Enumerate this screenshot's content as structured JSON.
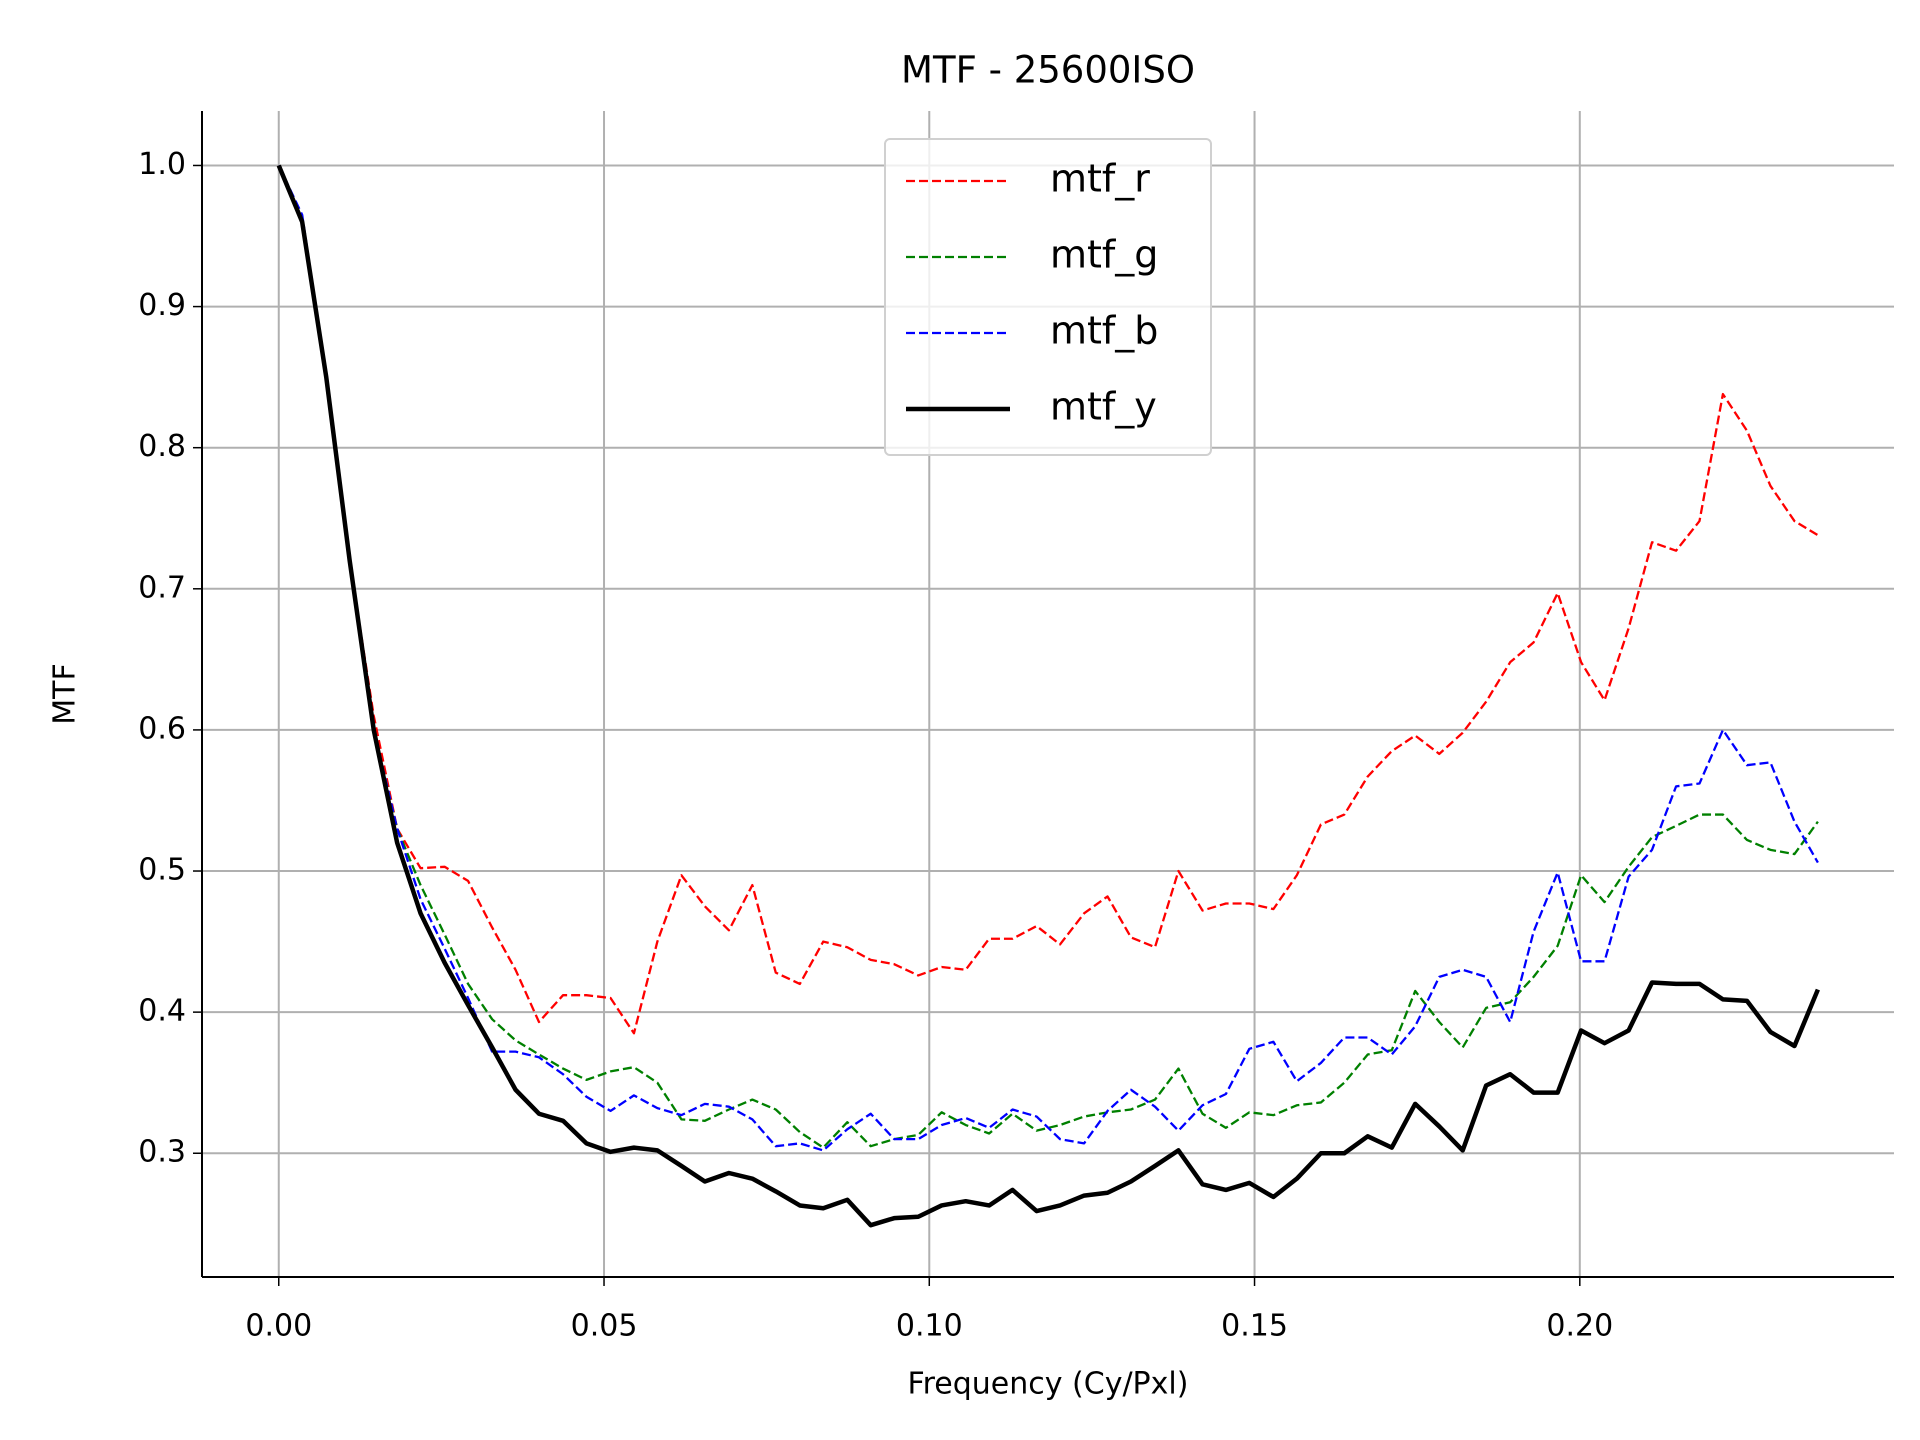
{
  "chart_data": {
    "type": "line",
    "title": "MTF - 25600ISO",
    "xlabel": "Frequency (Cy/Pxl)",
    "ylabel": "MTF",
    "x": [
      0,
      0.0036,
      0.0073,
      0.0109,
      0.0146,
      0.0182,
      0.0218,
      0.0255,
      0.0291,
      0.0328,
      0.0364,
      0.04,
      0.0437,
      0.0473,
      0.051,
      0.0546,
      0.0582,
      0.0619,
      0.0655,
      0.0692,
      0.0728,
      0.0764,
      0.0801,
      0.0837,
      0.0874,
      0.091,
      0.0946,
      0.0983,
      0.1019,
      0.1056,
      0.1092,
      0.1128,
      0.1165,
      0.1201,
      0.1238,
      0.1274,
      0.131,
      0.1347,
      0.1383,
      0.142,
      0.1456,
      0.1492,
      0.1529,
      0.1565,
      0.1602,
      0.1638,
      0.1674,
      0.1711,
      0.1747,
      0.1784,
      0.182,
      0.1856,
      0.1893,
      0.1929,
      0.1966,
      0.2002,
      0.2038,
      0.2075,
      0.2111,
      0.2148,
      0.2184,
      0.222,
      0.2257,
      0.2293,
      0.233,
      0.2366
    ],
    "series": [
      {
        "name": "mtf_r",
        "color": "#ff0000",
        "linestyle": "dashed",
        "values": [
          1.0,
          0.96,
          0.85,
          0.72,
          0.61,
          0.53,
          0.502,
          0.503,
          0.493,
          0.46,
          0.43,
          0.393,
          0.412,
          0.412,
          0.41,
          0.385,
          0.45,
          0.497,
          0.475,
          0.458,
          0.49,
          0.428,
          0.42,
          0.45,
          0.446,
          0.437,
          0.434,
          0.426,
          0.432,
          0.43,
          0.452,
          0.452,
          0.461,
          0.448,
          0.47,
          0.482,
          0.453,
          0.446,
          0.5,
          0.472,
          0.477,
          0.477,
          0.473,
          0.497,
          0.533,
          0.54,
          0.567,
          0.585,
          0.596,
          0.583,
          0.598,
          0.62,
          0.648,
          0.662,
          0.697,
          0.648,
          0.621,
          0.672,
          0.733,
          0.727,
          0.748,
          0.838,
          0.812,
          0.773,
          0.748,
          0.738
        ]
      },
      {
        "name": "mtf_g",
        "color": "#008000",
        "linestyle": "dashed",
        "values": [
          1.0,
          0.96,
          0.85,
          0.72,
          0.6,
          0.53,
          0.49,
          0.455,
          0.42,
          0.395,
          0.38,
          0.37,
          0.36,
          0.352,
          0.358,
          0.361,
          0.35,
          0.324,
          0.323,
          0.331,
          0.338,
          0.331,
          0.315,
          0.304,
          0.322,
          0.305,
          0.31,
          0.313,
          0.329,
          0.32,
          0.314,
          0.328,
          0.316,
          0.32,
          0.326,
          0.329,
          0.331,
          0.338,
          0.36,
          0.328,
          0.318,
          0.329,
          0.327,
          0.334,
          0.336,
          0.35,
          0.37,
          0.373,
          0.415,
          0.393,
          0.375,
          0.403,
          0.407,
          0.425,
          0.447,
          0.497,
          0.478,
          0.503,
          0.524,
          0.532,
          0.54,
          0.54,
          0.522,
          0.515,
          0.512,
          0.535
        ]
      },
      {
        "name": "mtf_b",
        "color": "#0000ff",
        "linestyle": "dashed",
        "values": [
          1.0,
          0.965,
          0.85,
          0.72,
          0.6,
          0.53,
          0.48,
          0.445,
          0.41,
          0.372,
          0.372,
          0.368,
          0.356,
          0.34,
          0.33,
          0.341,
          0.332,
          0.327,
          0.335,
          0.333,
          0.324,
          0.305,
          0.307,
          0.302,
          0.317,
          0.328,
          0.31,
          0.31,
          0.32,
          0.325,
          0.318,
          0.331,
          0.326,
          0.31,
          0.307,
          0.33,
          0.345,
          0.333,
          0.316,
          0.334,
          0.342,
          0.374,
          0.379,
          0.351,
          0.364,
          0.382,
          0.382,
          0.37,
          0.39,
          0.425,
          0.43,
          0.425,
          0.393,
          0.457,
          0.499,
          0.436,
          0.436,
          0.496,
          0.515,
          0.56,
          0.562,
          0.6,
          0.575,
          0.577,
          0.535,
          0.506
        ]
      },
      {
        "name": "mtf_y",
        "color": "#000000",
        "linestyle": "solid",
        "values": [
          1.0,
          0.96,
          0.85,
          0.72,
          0.6,
          0.52,
          0.47,
          0.435,
          0.405,
          0.375,
          0.345,
          0.328,
          0.323,
          0.307,
          0.301,
          0.304,
          0.302,
          0.291,
          0.28,
          0.286,
          0.282,
          0.273,
          0.263,
          0.261,
          0.267,
          0.249,
          0.254,
          0.255,
          0.263,
          0.266,
          0.263,
          0.274,
          0.259,
          0.263,
          0.27,
          0.272,
          0.28,
          0.291,
          0.302,
          0.278,
          0.274,
          0.279,
          0.269,
          0.282,
          0.3,
          0.3,
          0.312,
          0.304,
          0.335,
          0.319,
          0.302,
          0.348,
          0.356,
          0.343,
          0.343,
          0.387,
          0.378,
          0.387,
          0.421,
          0.42,
          0.42,
          0.409,
          0.408,
          0.386,
          0.376,
          0.416
        ]
      }
    ],
    "xlim": [
      -0.0118,
      0.2483
    ],
    "ylim": [
      0.2123,
      1.0386
    ],
    "xticks": [
      {
        "value": 0,
        "label": "0.00"
      },
      {
        "value": 0.05,
        "label": "0.05"
      },
      {
        "value": 0.1,
        "label": "0.10"
      },
      {
        "value": 0.15,
        "label": "0.15"
      },
      {
        "value": 0.2,
        "label": "0.20"
      }
    ],
    "yticks": [
      0.3,
      0.4,
      0.5,
      0.6,
      0.7,
      0.8,
      0.9,
      {
        "value": 1.0,
        "label": "1.0"
      }
    ],
    "grid": true,
    "legend": "upper center"
  }
}
